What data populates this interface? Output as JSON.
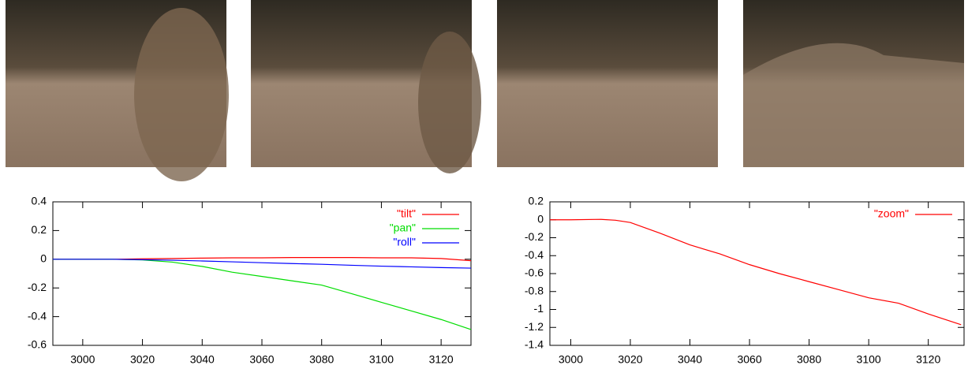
{
  "chart_data": [
    {
      "type": "line",
      "x": [
        2990,
        3000,
        3010,
        3020,
        3030,
        3040,
        3050,
        3060,
        3070,
        3080,
        3090,
        3100,
        3110,
        3120,
        3130
      ],
      "series": [
        {
          "name": "\"tilt\"",
          "color": "#ff0000",
          "values": [
            0,
            0,
            0,
            0.003,
            0.005,
            0.008,
            0.01,
            0.01,
            0.012,
            0.012,
            0.012,
            0.01,
            0.01,
            0.005,
            -0.01
          ]
        },
        {
          "name": "\"pan\"",
          "color": "#00dd00",
          "values": [
            0,
            0,
            0,
            -0.005,
            -0.02,
            -0.05,
            -0.09,
            -0.12,
            -0.15,
            -0.18,
            -0.24,
            -0.3,
            -0.36,
            -0.42,
            -0.49
          ]
        },
        {
          "name": "\"roll\"",
          "color": "#0000ff",
          "values": [
            0,
            0,
            0,
            -0.003,
            -0.007,
            -0.012,
            -0.018,
            -0.024,
            -0.03,
            -0.035,
            -0.042,
            -0.048,
            -0.053,
            -0.058,
            -0.062
          ]
        }
      ],
      "xlim": [
        2990,
        3130
      ],
      "xticks": [
        3000,
        3020,
        3040,
        3060,
        3080,
        3100,
        3120
      ],
      "ylim": [
        -0.6,
        0.4
      ],
      "yticks": [
        -0.6,
        -0.4,
        -0.2,
        0,
        0.2,
        0.4
      ],
      "legend": "top-right"
    },
    {
      "type": "line",
      "x": [
        2993,
        3000,
        3010,
        3015,
        3020,
        3030,
        3040,
        3050,
        3060,
        3070,
        3080,
        3090,
        3100,
        3110,
        3120,
        3131
      ],
      "series": [
        {
          "name": "\"zoom\"",
          "color": "#ff0000",
          "values": [
            0,
            0,
            0.005,
            -0.005,
            -0.03,
            -0.15,
            -0.28,
            -0.38,
            -0.5,
            -0.6,
            -0.69,
            -0.78,
            -0.87,
            -0.93,
            -1.05,
            -1.17
          ]
        }
      ],
      "xlim": [
        2993,
        3132
      ],
      "xticks": [
        3000,
        3020,
        3040,
        3060,
        3080,
        3100,
        3120
      ],
      "ylim": [
        -1.4,
        0.2
      ],
      "yticks": [
        -1.4,
        -1.2,
        -1,
        -0.8,
        -0.6,
        -0.4,
        -0.2,
        0,
        0.2
      ],
      "legend": "top-right"
    }
  ]
}
